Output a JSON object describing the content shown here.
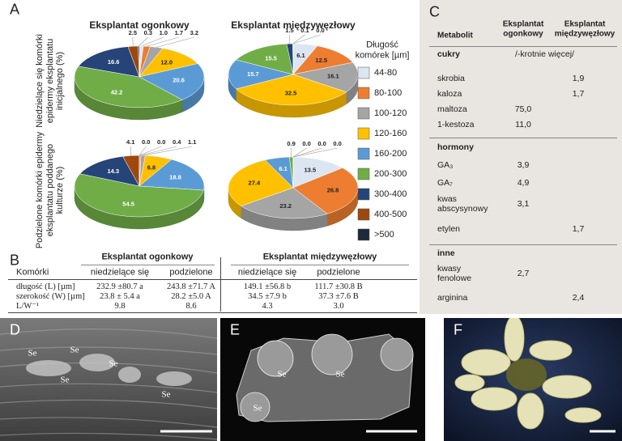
{
  "panel_labels": [
    "A",
    "B",
    "C",
    "D",
    "E",
    "F"
  ],
  "legend": {
    "title": "Długość komórek [µm]",
    "categories": [
      "44-80",
      "80-100",
      "100-120",
      "120-160",
      "160-200",
      "200-300",
      "300-400",
      "400-500",
      ">500"
    ],
    "colors": [
      "#dce6f2",
      "#ed7d31",
      "#a5a5a5",
      "#ffc000",
      "#5b9bd5",
      "#70ad47",
      "#264478",
      "#9e480e",
      "#1c2a3a"
    ]
  },
  "chart_data": [
    {
      "type": "pie",
      "title": "Eksplantat ogonkowy",
      "ylabel": "Niedzielące się komórki epidermy eksplantatu inicjalnego (%)",
      "values": [
        1.0,
        1.7,
        3.2,
        12.0,
        20.6,
        42.2,
        16.6,
        2.5,
        0.3
      ],
      "value_labels": [
        "1.0",
        "1.7",
        "3.2",
        "12.0",
        "20.6",
        "42.2",
        "16.6",
        "2.5",
        "0.3"
      ]
    },
    {
      "type": "pie",
      "title": "Eksplantat międzywęzłowy",
      "values": [
        6.1,
        12.5,
        16.1,
        32.5,
        15.7,
        15.5,
        1.5,
        0.1,
        0.0
      ],
      "value_labels": [
        "6.1",
        "12.5",
        "16.1",
        "32.5",
        "15.7",
        "15.5",
        "1.5",
        "0.1",
        "0.0"
      ]
    },
    {
      "type": "pie",
      "ylabel": "Podzielone komórki epidermy eksplantatu poddanego kulturze (%)",
      "values": [
        0.0,
        0.4,
        1.1,
        6.8,
        18.8,
        54.5,
        14.3,
        4.1,
        0.0
      ],
      "value_labels": [
        "0.0",
        "0.4",
        "1.1",
        "6.8",
        "18.8",
        "54.5",
        "14.3",
        "4.1",
        "0.0"
      ]
    },
    {
      "type": "pie",
      "values": [
        13.5,
        26.8,
        23.2,
        27.4,
        6.1,
        0.9,
        0.0,
        0.0,
        0.0
      ],
      "value_labels": [
        "13.5",
        "26.8",
        "23.2",
        "27.4",
        "6.1",
        "0.9",
        "0.0",
        "0.0",
        "0.0"
      ]
    }
  ],
  "table_b": {
    "group_headers": [
      "Eksplantat ogonkowy",
      "Eksplantat międzywęzłowy"
    ],
    "row_header": "Komórki",
    "column_headers": [
      "niedzielące się",
      "podzielone",
      "niedzielące się",
      "podzielone"
    ],
    "rows": [
      [
        "długość (L) [µm]",
        "232.9 ±80.7 a",
        "243.8 ±71.7 A",
        "149.1 ±56.8 b",
        "111.7 ±30.8 B"
      ],
      [
        "szerokość (W) [µm]",
        "23.8 ± 5.4 a",
        "28.2 ±5.0 A",
        "34.5 ±7.9 b",
        "37.3 ±7.6 B"
      ],
      [
        "L/W⁻¹",
        "9.8",
        "8.6",
        "4.3",
        "3.0"
      ]
    ]
  },
  "table_c": {
    "headers": [
      "Metabolit",
      "Eksplantat ogonkowy",
      "Eksplantat międzywęzłowy"
    ],
    "note": "/-krotnie więcej/",
    "sections": [
      {
        "name": "cukry",
        "rows": [
          [
            "skrobia",
            null,
            "1,9"
          ],
          [
            "kaloza",
            null,
            "1,7"
          ],
          [
            "maltoza",
            "75,0",
            null
          ],
          [
            "1-kestoza",
            "11,0",
            null
          ]
        ]
      },
      {
        "name": "hormony",
        "rows": [
          [
            "GA₃",
            "3,9",
            null
          ],
          [
            "GA₇",
            "4,9",
            null
          ],
          [
            "kwas abscysynowy",
            "3,1",
            null
          ],
          [
            "etylen",
            null,
            "1,7"
          ]
        ]
      },
      {
        "name": "inne",
        "rows": [
          [
            "kwasy fenolowe",
            "2,7",
            null
          ],
          [
            "arginina",
            null,
            "2,4"
          ]
        ]
      }
    ]
  },
  "micrographs": {
    "d_labels": [
      "Se",
      "Se",
      "Se",
      "Se",
      "Se"
    ],
    "e_labels": [
      "Se",
      "Se",
      "Se"
    ]
  }
}
